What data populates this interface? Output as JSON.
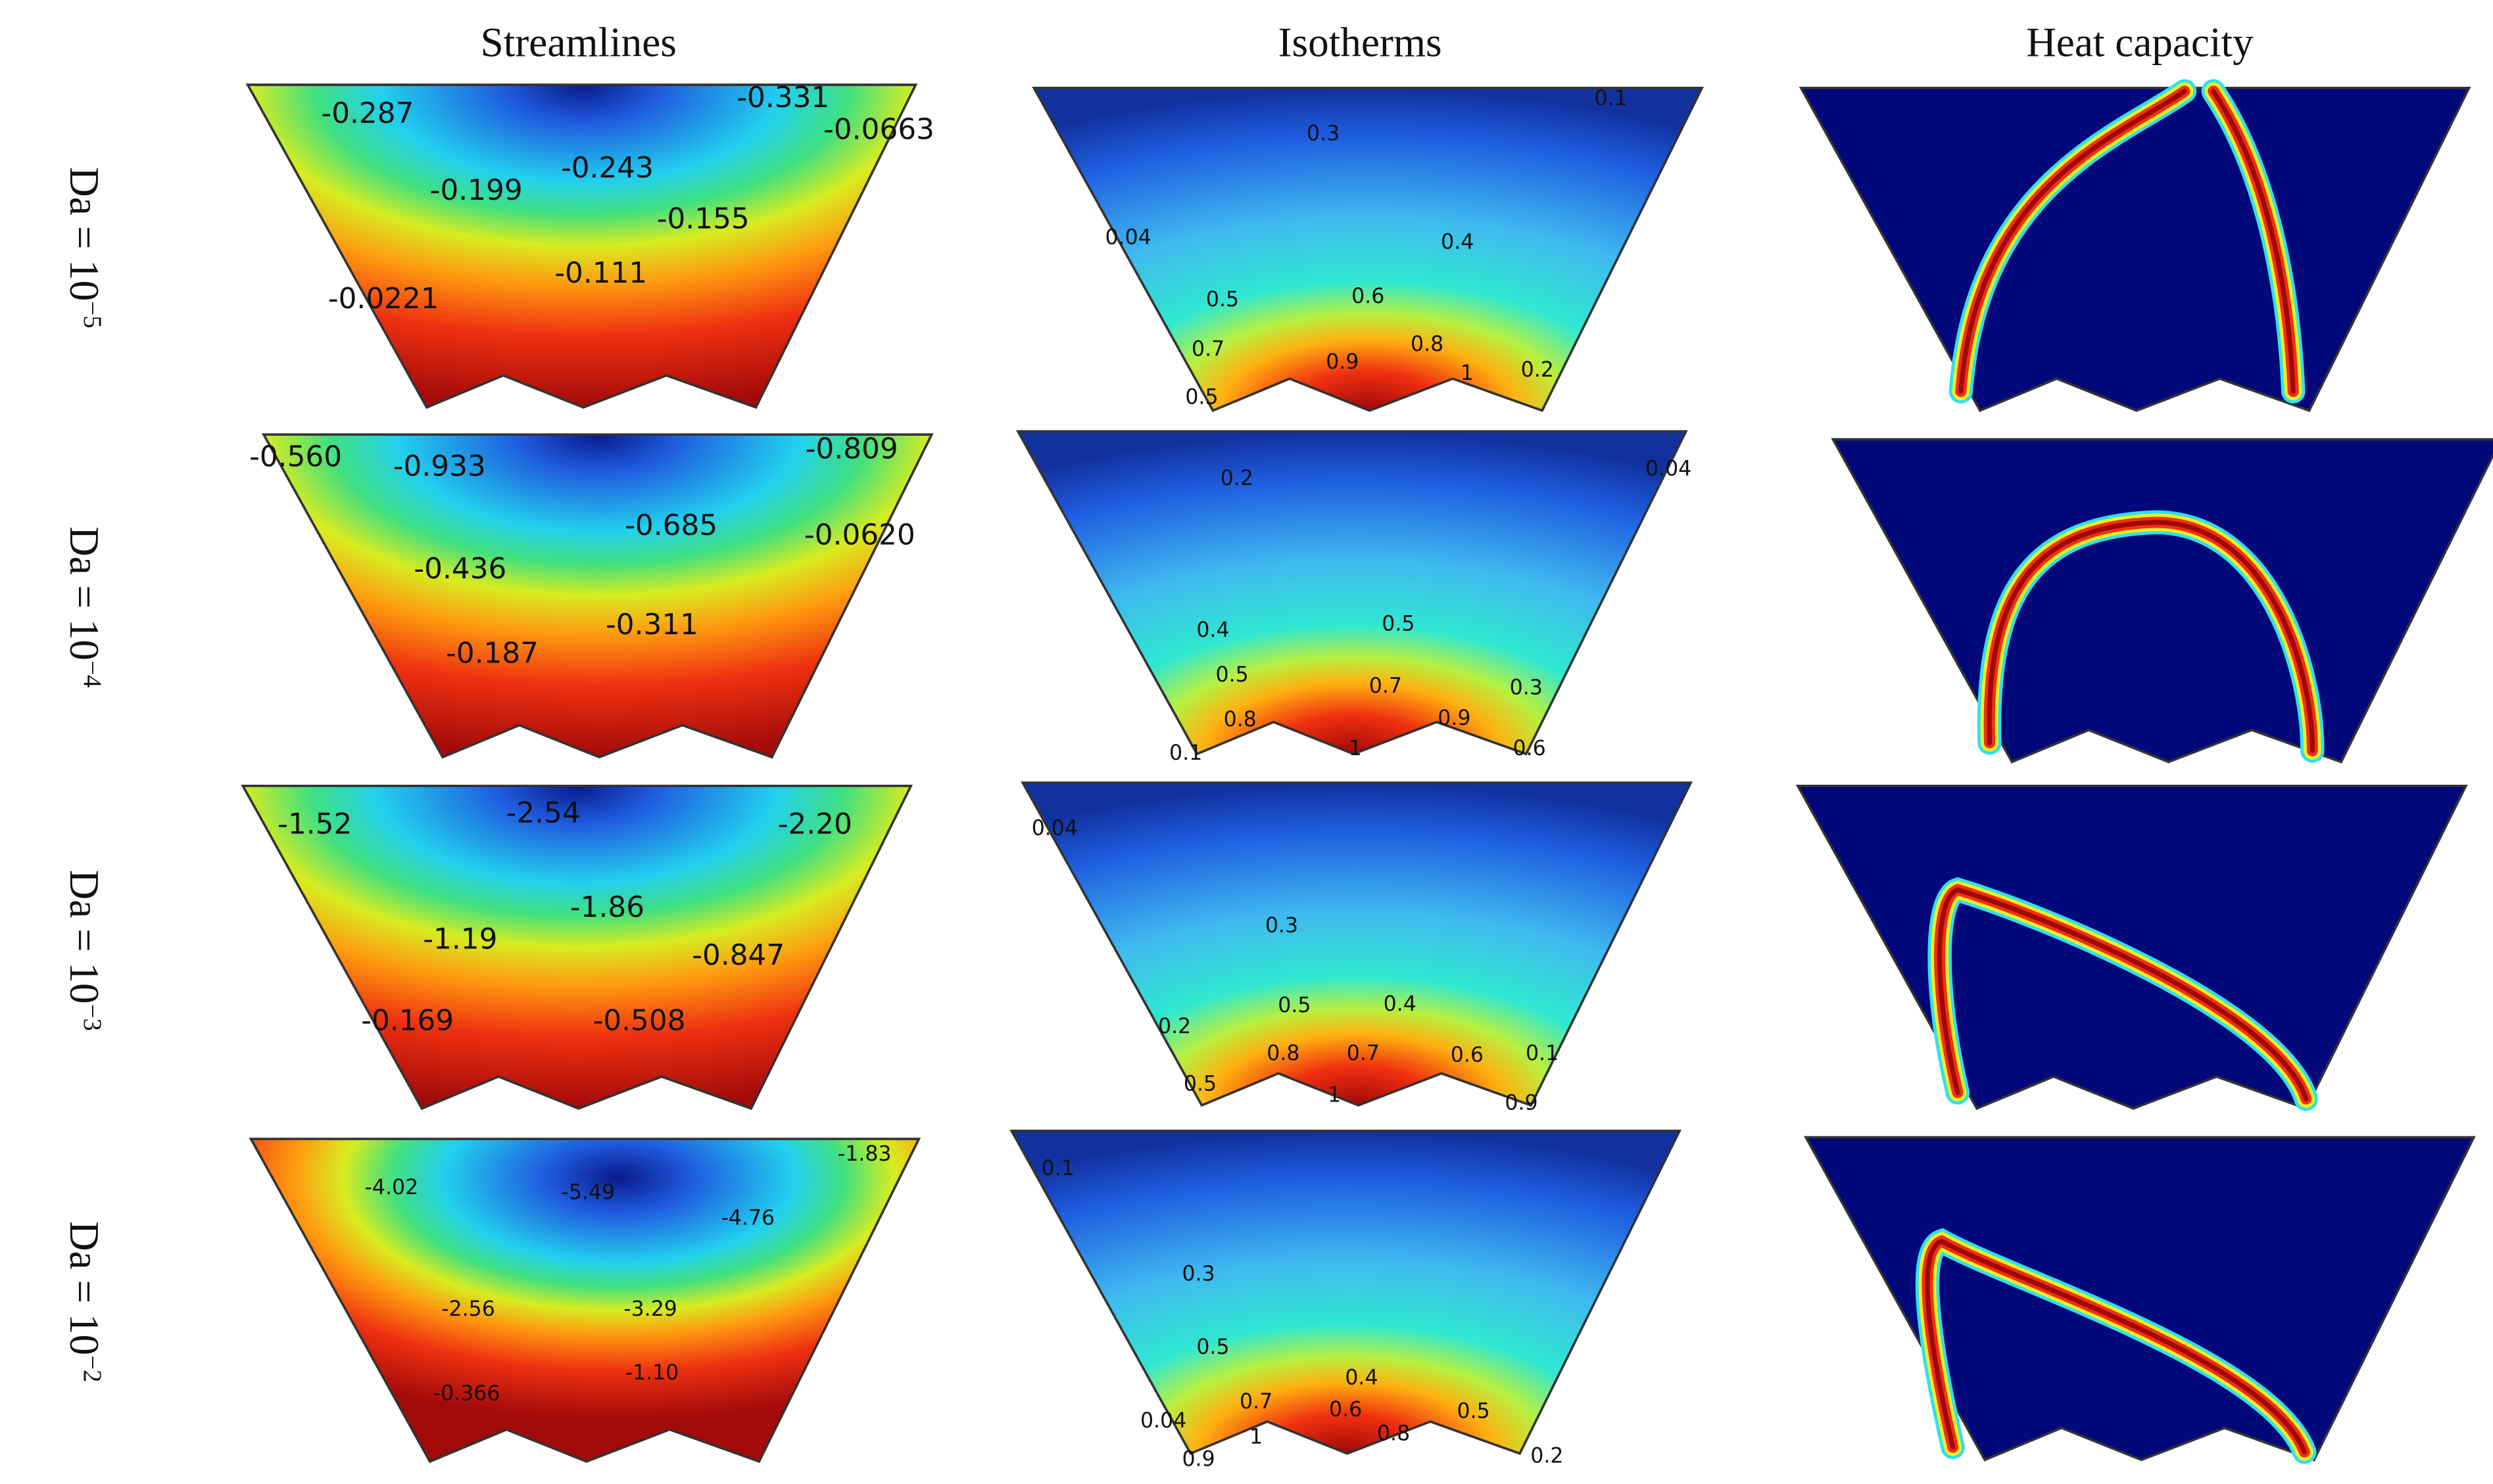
{
  "columns": [
    "Streamlines",
    "Isotherms",
    "Heat capacity"
  ],
  "rows": [
    {
      "label": {
        "base": "Da = 10",
        "exponent": "−5"
      },
      "streamlines": [
        "-0.287",
        "-0.331",
        "-0.0663",
        "-0.243",
        "-0.199",
        "-0.155",
        "-0.111",
        "-0.0221"
      ],
      "isotherms": [
        "0.1",
        "0.3",
        "0.04",
        "0.4",
        "0.5",
        "0.6",
        "0.7",
        "0.8",
        "0.9",
        "1",
        "0.2",
        "0.5"
      ]
    },
    {
      "label": {
        "base": "Da = 10",
        "exponent": "−4"
      },
      "streamlines": [
        "-0.560",
        "-0.933",
        "-0.809",
        "-0.685",
        "-0.0620",
        "-0.436",
        "-0.311",
        "-0.187"
      ],
      "isotherms": [
        "0.2",
        "0.04",
        "0.4",
        "0.5",
        "0.5",
        "0.7",
        "0.3",
        "0.8",
        "0.9",
        "1",
        "0.1",
        "0.6"
      ]
    },
    {
      "label": {
        "base": "Da = 10",
        "exponent": "−3"
      },
      "streamlines": [
        "-1.52",
        "-2.54",
        "-2.20",
        "-1.86",
        "-1.19",
        "-0.847",
        "-0.169",
        "-0.508"
      ],
      "isotherms": [
        "0.04",
        "0.3",
        "0.5",
        "0.4",
        "0.2",
        "0.8",
        "0.7",
        "0.6",
        "0.1",
        "0.5",
        "1",
        "0.9"
      ]
    },
    {
      "label": {
        "base": "Da = 10",
        "exponent": "−2"
      },
      "streamlines": [
        "-1.83",
        "-4.02",
        "-5.49",
        "-4.76",
        "-2.56",
        "-3.29",
        "-1.10",
        "-0.366"
      ],
      "isotherms": [
        "0.1",
        "0.3",
        "0.5",
        "0.4",
        "0.7",
        "0.6",
        "0.5",
        "0.04",
        "0.8",
        "1",
        "0.9",
        "0.2"
      ]
    }
  ]
}
